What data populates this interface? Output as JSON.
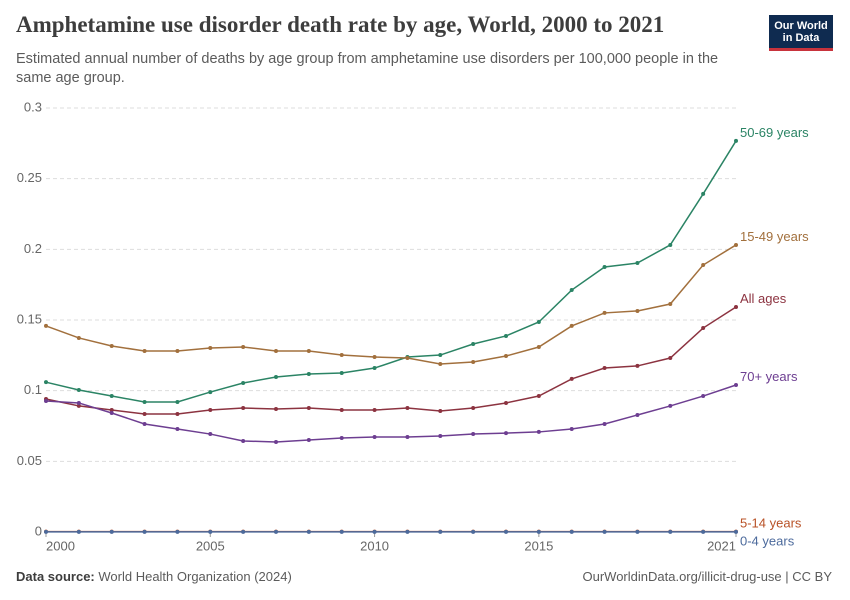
{
  "chart_data": {
    "type": "line",
    "title": "Amphetamine use disorder death rate by age, World, 2000 to 2021",
    "subtitle": "Estimated annual number of deaths by age group from amphetamine use disorders per 100,000 people in the same age group.",
    "logo": [
      "Our World",
      "in Data"
    ],
    "source_label": "Data source:",
    "source": "World Health Organization (2024)",
    "credit": "OurWorldinData.org/illicit-drug-use | CC BY",
    "x": [
      2000,
      2001,
      2002,
      2003,
      2004,
      2005,
      2006,
      2007,
      2008,
      2009,
      2010,
      2011,
      2012,
      2013,
      2014,
      2015,
      2016,
      2017,
      2018,
      2019,
      2020,
      2021
    ],
    "xlim": [
      2000,
      2021
    ],
    "xticks": [
      2000,
      2005,
      2010,
      2015,
      2021
    ],
    "ylim": [
      0,
      0.3
    ],
    "yticks": [
      0,
      0.05,
      0.1,
      0.15,
      0.2,
      0.25,
      0.3
    ],
    "grid": true,
    "series": [
      {
        "name": "50-69 years",
        "color": "#2b8465",
        "values": [
          0.106,
          0.1005,
          0.0962,
          0.092,
          0.092,
          0.099,
          0.1054,
          0.1097,
          0.1118,
          0.1125,
          0.116,
          0.1238,
          0.1252,
          0.133,
          0.1387,
          0.1486,
          0.1712,
          0.1875,
          0.1903,
          0.2031,
          0.2392,
          0.2767
        ]
      },
      {
        "name": "15-49 years",
        "color": "#a2703d",
        "values": [
          0.1458,
          0.1373,
          0.1316,
          0.1281,
          0.1281,
          0.1302,
          0.1309,
          0.1281,
          0.1281,
          0.1252,
          0.1238,
          0.1231,
          0.1189,
          0.1203,
          0.1245,
          0.1309,
          0.1458,
          0.155,
          0.1564,
          0.1613,
          0.1889,
          0.2031
        ]
      },
      {
        "name": "All ages",
        "color": "#8c3340",
        "values": [
          0.0941,
          0.0892,
          0.0863,
          0.0835,
          0.0835,
          0.0863,
          0.0877,
          0.087,
          0.0877,
          0.0863,
          0.0863,
          0.0877,
          0.0856,
          0.0877,
          0.0913,
          0.0962,
          0.1083,
          0.116,
          0.1175,
          0.1231,
          0.1443,
          0.1592
        ]
      },
      {
        "name": "70+ years",
        "color": "#6d3e91",
        "values": [
          0.0927,
          0.0913,
          0.0842,
          0.0764,
          0.0729,
          0.0693,
          0.0644,
          0.0637,
          0.0651,
          0.0665,
          0.0672,
          0.0672,
          0.0679,
          0.0693,
          0.07,
          0.0708,
          0.0729,
          0.0764,
          0.0828,
          0.0892,
          0.0962,
          0.104
        ]
      },
      {
        "name": "5-14 years",
        "color": "#b85126",
        "values": [
          0.0003,
          0.0003,
          0.0003,
          0.0003,
          0.0003,
          0.0003,
          0.0003,
          0.0003,
          0.0003,
          0.0003,
          0.0003,
          0.0003,
          0.0003,
          0.0003,
          0.0003,
          0.0003,
          0.0003,
          0.0003,
          0.0003,
          0.0003,
          0.0003,
          0.0003
        ]
      },
      {
        "name": "0-4 years",
        "color": "#4c6a9c",
        "values": [
          0.0001,
          0.0001,
          0.0001,
          0.0001,
          0.0001,
          0.0001,
          0.0001,
          0.0001,
          0.0001,
          0.0001,
          0.0001,
          0.0001,
          0.0001,
          0.0001,
          0.0001,
          0.0001,
          0.0001,
          0.0001,
          0.0001,
          0.0001,
          0.0001,
          0.0001
        ]
      }
    ]
  }
}
